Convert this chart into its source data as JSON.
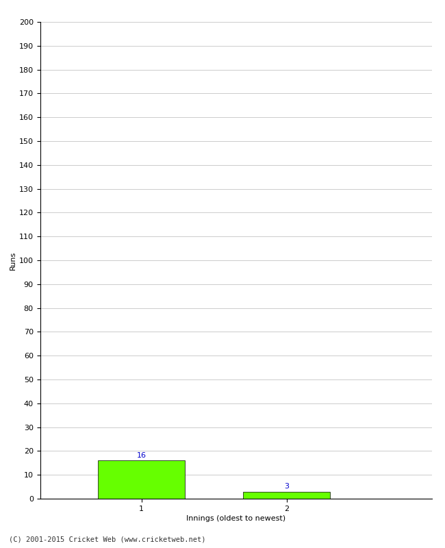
{
  "categories": [
    "1",
    "2"
  ],
  "values": [
    16,
    3
  ],
  "bar_color": "#66ff00",
  "bar_edgecolor": "#000000",
  "xlabel": "Innings (oldest to newest)",
  "ylabel": "Runs",
  "ylim": [
    0,
    200
  ],
  "yticks": [
    0,
    10,
    20,
    30,
    40,
    50,
    60,
    70,
    80,
    90,
    100,
    110,
    120,
    130,
    140,
    150,
    160,
    170,
    180,
    190,
    200
  ],
  "value_label_color": "#0000cc",
  "value_label_fontsize": 8,
  "footer": "(C) 2001-2015 Cricket Web (www.cricketweb.net)",
  "background_color": "#ffffff",
  "grid_color": "#cccccc",
  "bar_positions": [
    1,
    2
  ],
  "bar_width": 0.6,
  "xlim": [
    0.3,
    3.0
  ]
}
